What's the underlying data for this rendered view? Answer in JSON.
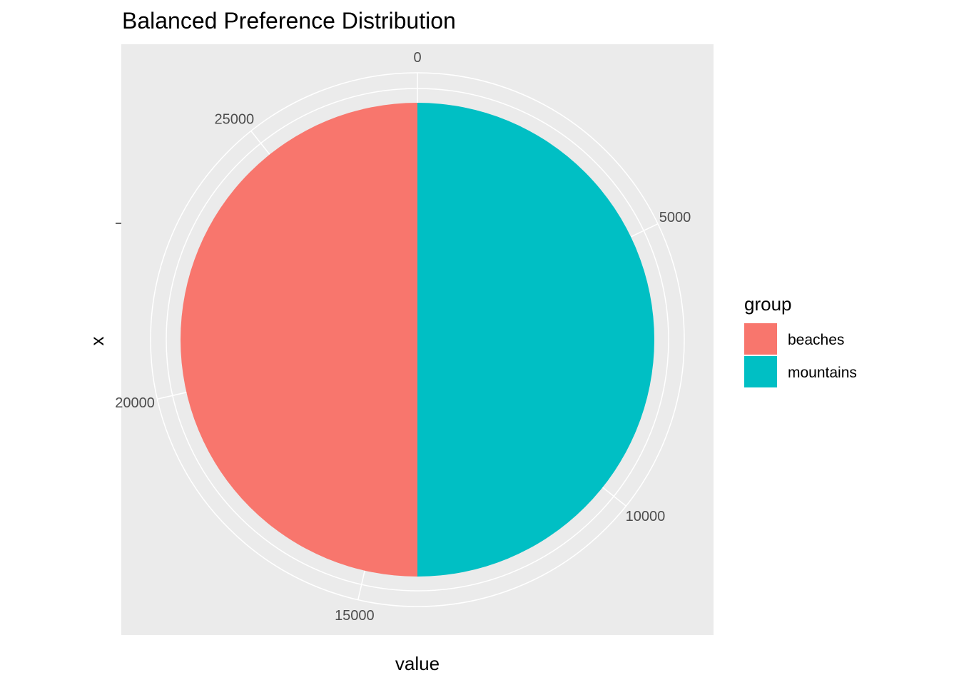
{
  "chart_data": {
    "type": "pie",
    "title": "Balanced Preference Distribution",
    "xlabel": "value",
    "ylabel": "x",
    "theta_ticks": [
      0,
      5000,
      10000,
      15000,
      20000,
      25000
    ],
    "theta_tick_labels": [
      "0",
      "5000",
      "10000",
      "15000",
      "20000",
      "25000"
    ],
    "total": 28000,
    "slices": [
      {
        "label": "mountains",
        "value": 14000,
        "color": "#00BFC4"
      },
      {
        "label": "beaches",
        "value": 14000,
        "color": "#F8766D"
      }
    ],
    "legend": {
      "title": "group",
      "position": "right",
      "entries": [
        {
          "label": "beaches",
          "color": "#F8766D"
        },
        {
          "label": "mountains",
          "color": "#00BFC4"
        }
      ]
    },
    "colors": {
      "panel_background": "#EBEBEB",
      "grid": "#FFFFFF"
    },
    "grid": true
  }
}
